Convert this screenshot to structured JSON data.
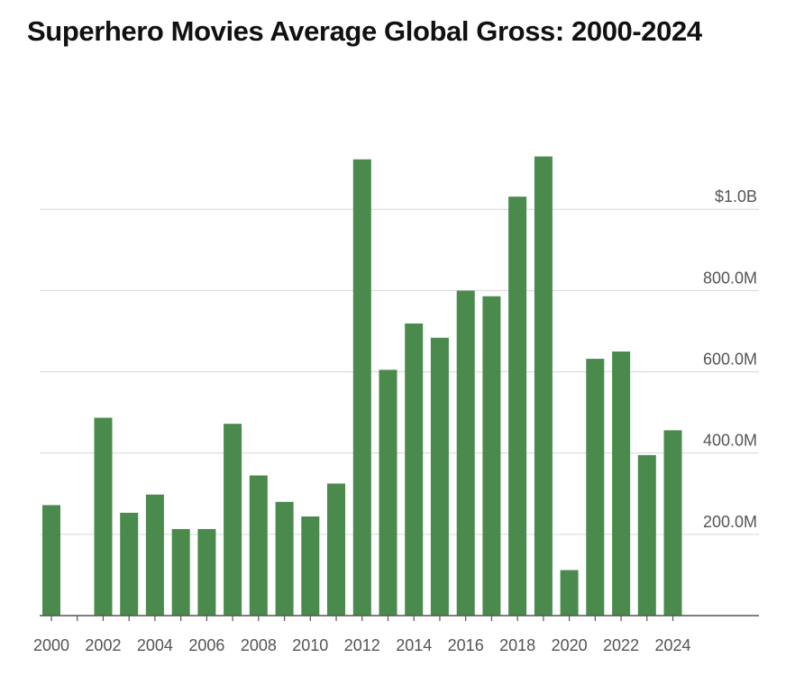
{
  "chart_data": {
    "type": "bar",
    "title": "Superhero Movies Average Global Gross: 2000-2024",
    "xlabel": "",
    "ylabel": "",
    "categories": [
      "2000",
      "2001",
      "2002",
      "2003",
      "2004",
      "2005",
      "2006",
      "2007",
      "2008",
      "2009",
      "2010",
      "2011",
      "2012",
      "2013",
      "2014",
      "2015",
      "2016",
      "2017",
      "2018",
      "2019",
      "2020",
      "2021",
      "2022",
      "2023",
      "2024"
    ],
    "values": [
      272,
      0,
      487,
      253,
      298,
      213,
      213,
      472,
      345,
      280,
      244,
      325,
      1123,
      605,
      719,
      684,
      800,
      786,
      1031,
      1130,
      112,
      632,
      650,
      395,
      456
    ],
    "unit": "USD millions",
    "ylim": [
      0,
      1200
    ],
    "yticks": [
      200,
      400,
      600,
      800,
      1000
    ],
    "ytick_labels": [
      "200.0M",
      "400.0M",
      "600.0M",
      "800.0M",
      "$1.0B"
    ],
    "xtick_labels": [
      "2000",
      "2002",
      "2004",
      "2006",
      "2008",
      "2010",
      "2012",
      "2014",
      "2016",
      "2018",
      "2020",
      "2022",
      "2024"
    ],
    "grid": true,
    "y_axis_position": "right",
    "bar_color": "#4a8a4c"
  }
}
